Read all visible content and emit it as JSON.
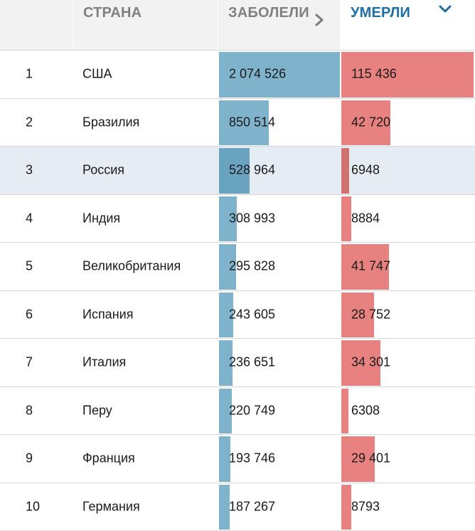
{
  "header": {
    "rank_label": "",
    "country_label": "СТРАНА",
    "cases_label": "ЗАБОЛЕЛИ",
    "deaths_label": "УМЕРЛИ",
    "active_sort": "deaths",
    "colors": {
      "cases_bar": "#7fb3cc",
      "deaths_bar": "#e88280",
      "active_header": "#1d6fa5",
      "inactive_header": "#808080"
    }
  },
  "rows": [
    {
      "rank": "1",
      "country": "США",
      "cases": "2 074 526",
      "deaths": "115 436",
      "cases_value": 2074526,
      "deaths_value": 115436,
      "highlighted": false
    },
    {
      "rank": "2",
      "country": "Бразилия",
      "cases": "850 514",
      "deaths": "42 720",
      "cases_value": 850514,
      "deaths_value": 42720,
      "highlighted": false
    },
    {
      "rank": "3",
      "country": "Россия",
      "cases": "528 964",
      "deaths": "6948",
      "cases_value": 528964,
      "deaths_value": 6948,
      "highlighted": true
    },
    {
      "rank": "4",
      "country": "Индия",
      "cases": "308 993",
      "deaths": "8884",
      "cases_value": 308993,
      "deaths_value": 8884,
      "highlighted": false
    },
    {
      "rank": "5",
      "country": "Великобритания",
      "cases": "295 828",
      "deaths": "41 747",
      "cases_value": 295828,
      "deaths_value": 41747,
      "highlighted": false
    },
    {
      "rank": "6",
      "country": "Испания",
      "cases": "243 605",
      "deaths": "28 752",
      "cases_value": 243605,
      "deaths_value": 28752,
      "highlighted": false
    },
    {
      "rank": "7",
      "country": "Италия",
      "cases": "236 651",
      "deaths": "34 301",
      "cases_value": 236651,
      "deaths_value": 34301,
      "highlighted": false
    },
    {
      "rank": "8",
      "country": "Перу",
      "cases": "220 749",
      "deaths": "6308",
      "cases_value": 220749,
      "deaths_value": 6308,
      "highlighted": false
    },
    {
      "rank": "9",
      "country": "Франция",
      "cases": "193 746",
      "deaths": "29 401",
      "cases_value": 193746,
      "deaths_value": 29401,
      "highlighted": false
    },
    {
      "rank": "10",
      "country": "Германия",
      "cases": "187 267",
      "deaths": "8793",
      "cases_value": 187267,
      "deaths_value": 8793,
      "highlighted": false
    }
  ]
}
